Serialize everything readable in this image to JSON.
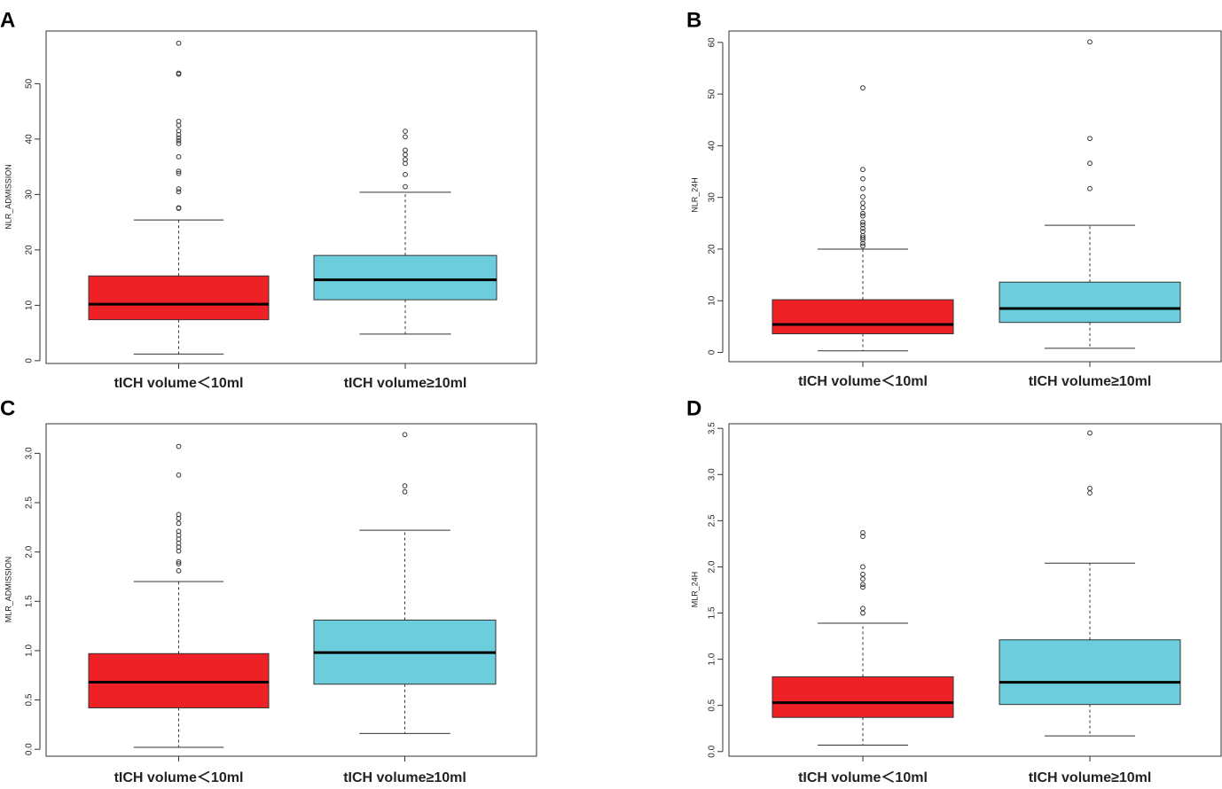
{
  "colors": {
    "group1": "#ee2127",
    "group2": "#6ccedd",
    "median": "#000000",
    "whisker": "#333333",
    "frame": "#333333"
  },
  "chart_data": [
    {
      "panel": "A",
      "type": "boxplot",
      "ylabel": "NLR_ADMISSION",
      "ylim": [
        -0.5,
        59.5
      ],
      "yticks": [
        0,
        10,
        20,
        30,
        40,
        50
      ],
      "ytick_labels": [
        "0",
        "10",
        "20",
        "30",
        "40",
        "50"
      ],
      "categories": [
        "tICH volume＜10ml",
        "tICH volume≥10ml"
      ],
      "boxes": [
        {
          "min": 1.2,
          "q1": 7.4,
          "median": 10.2,
          "q3": 15.3,
          "max": 25.4,
          "outliers": [
            27.5,
            27.6,
            30.5,
            31.0,
            33.8,
            34.2,
            36.8,
            39.2,
            39.7,
            40.2,
            40.8,
            41.5,
            42.5,
            43.2,
            51.7,
            51.9,
            57.3
          ]
        },
        {
          "min": 4.8,
          "q1": 11.0,
          "median": 14.6,
          "q3": 19.0,
          "max": 30.4,
          "outliers": [
            31.4,
            33.6,
            35.6,
            36.3,
            37.2,
            38.0,
            40.4,
            41.4
          ]
        }
      ]
    },
    {
      "panel": "B",
      "type": "boxplot",
      "ylabel": "NLR_24H",
      "ylim": [
        -1.8,
        62.2
      ],
      "yticks": [
        0,
        10,
        20,
        30,
        40,
        50,
        60
      ],
      "ytick_labels": [
        "0",
        "10",
        "20",
        "30",
        "40",
        "50",
        "60"
      ],
      "categories": [
        "tICH volume＜10ml",
        "tICH volume≥10ml"
      ],
      "boxes": [
        {
          "min": 0.3,
          "q1": 3.6,
          "median": 5.4,
          "q3": 10.2,
          "max": 20.0,
          "outliers": [
            20.6,
            21.1,
            21.8,
            22.2,
            22.6,
            23.4,
            24.0,
            24.7,
            25.2,
            26.4,
            26.9,
            28.0,
            28.9,
            30.1,
            31.7,
            33.6,
            35.4,
            51.2
          ]
        },
        {
          "min": 0.8,
          "q1": 5.8,
          "median": 8.5,
          "q3": 13.6,
          "max": 24.6,
          "outliers": [
            31.7,
            36.6,
            41.4,
            60.1
          ]
        }
      ]
    },
    {
      "panel": "C",
      "type": "boxplot",
      "ylabel": "MLR_ADMISSION",
      "ylim": [
        -0.07,
        3.3
      ],
      "yticks": [
        0.0,
        0.5,
        1.0,
        1.5,
        2.0,
        2.5,
        3.0
      ],
      "ytick_labels": [
        "0.0",
        "0.5",
        "1.0",
        "1.5",
        "2.0",
        "2.5",
        "3.0"
      ],
      "categories": [
        "tICH volume＜10ml",
        "tICH volume≥10ml"
      ],
      "boxes": [
        {
          "min": 0.02,
          "q1": 0.42,
          "median": 0.68,
          "q3": 0.97,
          "max": 1.7,
          "outliers": [
            1.81,
            1.88,
            1.9,
            2.01,
            2.05,
            2.09,
            2.13,
            2.17,
            2.21,
            2.29,
            2.34,
            2.38,
            2.78,
            3.07
          ]
        },
        {
          "min": 0.16,
          "q1": 0.66,
          "median": 0.98,
          "q3": 1.31,
          "max": 2.22,
          "outliers": [
            2.61,
            2.67,
            3.19
          ]
        }
      ]
    },
    {
      "panel": "D",
      "type": "boxplot",
      "ylabel": "MLR_24H",
      "ylim": [
        -0.05,
        3.55
      ],
      "yticks": [
        0.0,
        0.5,
        1.0,
        1.5,
        2.0,
        2.5,
        3.0,
        3.5
      ],
      "ytick_labels": [
        "0.0",
        "0.5",
        "1.0",
        "1.5",
        "2.0",
        "2.5",
        "3.0",
        "3.5"
      ],
      "categories": [
        "tICH volume＜10ml",
        "tICH volume≥10ml"
      ],
      "boxes": [
        {
          "min": 0.07,
          "q1": 0.37,
          "median": 0.53,
          "q3": 0.81,
          "max": 1.39,
          "outliers": [
            1.5,
            1.55,
            1.78,
            1.81,
            1.87,
            1.92,
            2.0,
            2.33,
            2.37
          ]
        },
        {
          "min": 0.17,
          "q1": 0.51,
          "median": 0.75,
          "q3": 1.21,
          "max": 2.04,
          "outliers": [
            2.8,
            2.85,
            3.45
          ]
        }
      ]
    }
  ]
}
